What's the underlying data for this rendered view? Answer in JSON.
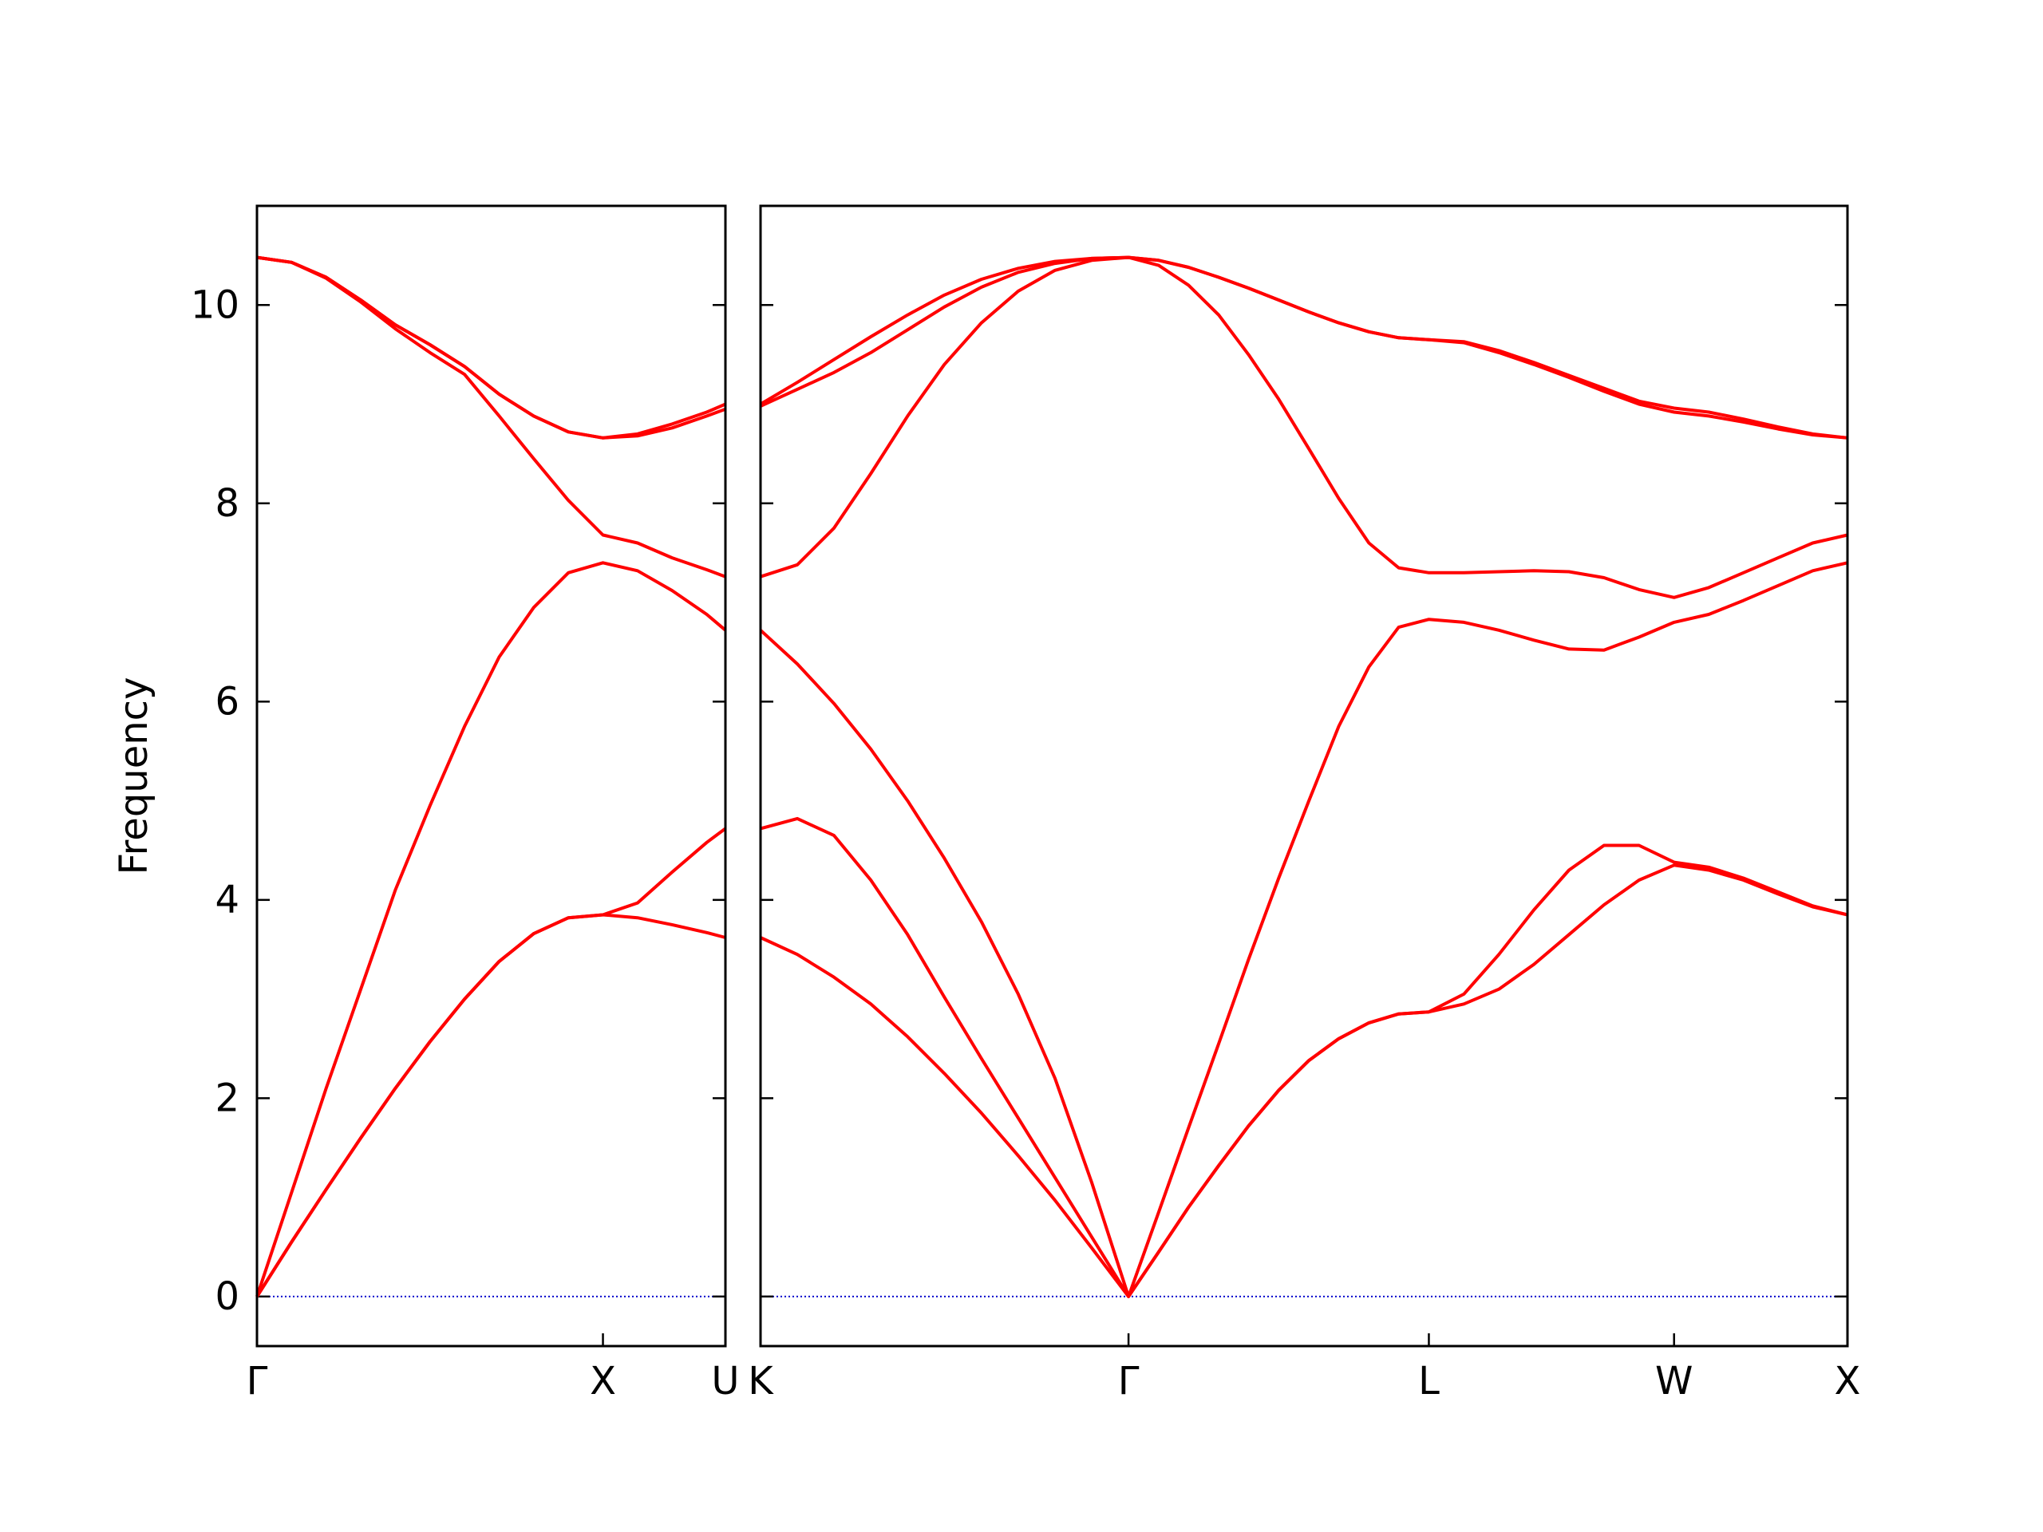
{
  "chart_data": [
    {
      "type": "line",
      "ylabel": "Frequency",
      "x": [
        0,
        0.1,
        0.2,
        0.3,
        0.4,
        0.5,
        0.6,
        0.7,
        0.8,
        0.9,
        1.0,
        1.1,
        1.2,
        1.3,
        1.354
      ],
      "xlim": [
        0,
        1.354
      ],
      "ylim": [
        -0.5,
        11
      ],
      "xticks": [
        {
          "value": 0,
          "label": "Γ"
        },
        {
          "value": 1.0,
          "label": "X"
        },
        {
          "value": 1.354,
          "label": "U"
        }
      ],
      "yticks": [
        0,
        2,
        4,
        6,
        8,
        10
      ],
      "ytick_labels": true,
      "hline": 0,
      "hline_color": "#0000cc",
      "series": [
        {
          "color": "#ff0000",
          "values": [
            0,
            0.55,
            1.08,
            1.6,
            2.1,
            2.57,
            3.0,
            3.38,
            3.66,
            3.82,
            3.85,
            3.82,
            3.75,
            3.67,
            3.62
          ]
        },
        {
          "color": "#ff0000",
          "values": [
            0,
            0.55,
            1.08,
            1.6,
            2.1,
            2.57,
            3.0,
            3.38,
            3.66,
            3.82,
            3.85,
            3.97,
            4.28,
            4.58,
            4.72
          ]
        },
        {
          "color": "#ff0000",
          "values": [
            0,
            1.05,
            2.1,
            3.1,
            4.1,
            4.95,
            5.75,
            6.45,
            6.95,
            7.3,
            7.4,
            7.32,
            7.12,
            6.88,
            6.72
          ]
        },
        {
          "color": "#ff0000",
          "values": [
            10.48,
            10.43,
            10.27,
            10.03,
            9.76,
            9.52,
            9.3,
            8.88,
            8.45,
            8.03,
            7.68,
            7.6,
            7.45,
            7.33,
            7.26
          ]
        },
        {
          "color": "#ff0000",
          "values": [
            10.48,
            10.43,
            10.28,
            10.05,
            9.8,
            9.6,
            9.38,
            9.1,
            8.88,
            8.72,
            8.66,
            8.68,
            8.76,
            8.88,
            8.95
          ]
        },
        {
          "color": "#ff0000",
          "values": [
            10.48,
            10.43,
            10.28,
            10.05,
            9.8,
            9.6,
            9.38,
            9.1,
            8.88,
            8.72,
            8.66,
            8.7,
            8.8,
            8.92,
            9.0
          ]
        }
      ]
    },
    {
      "type": "line",
      "x": [
        1.354,
        1.46,
        1.566,
        1.672,
        1.778,
        1.884,
        1.991,
        2.097,
        2.203,
        2.309,
        2.415,
        2.502,
        2.588,
        2.675,
        2.761,
        2.848,
        2.935,
        3.021,
        3.108,
        3.194,
        3.281,
        3.382,
        3.483,
        3.584,
        3.685,
        3.786,
        3.887,
        3.988,
        4.088,
        4.188,
        4.288,
        4.388,
        4.488
      ],
      "xlim": [
        1.354,
        4.488
      ],
      "ylim": [
        -0.5,
        11
      ],
      "xticks": [
        {
          "value": 1.354,
          "label": "K"
        },
        {
          "value": 2.415,
          "label": "Γ"
        },
        {
          "value": 3.281,
          "label": "L"
        },
        {
          "value": 3.988,
          "label": "W"
        },
        {
          "value": 4.488,
          "label": "X"
        }
      ],
      "yticks": [
        0,
        2,
        4,
        6,
        8,
        10
      ],
      "ytick_labels": false,
      "hline": 0,
      "hline_color": "#0000cc",
      "series": [
        {
          "color": "#ff0000",
          "values": [
            3.62,
            3.45,
            3.22,
            2.95,
            2.62,
            2.25,
            1.85,
            1.42,
            0.97,
            0.49,
            0,
            0.45,
            0.9,
            1.32,
            1.72,
            2.08,
            2.38,
            2.6,
            2.76,
            2.85,
            2.87,
            2.95,
            3.1,
            3.35,
            3.65,
            3.95,
            4.2,
            4.35,
            4.3,
            4.2,
            4.06,
            3.93,
            3.85
          ]
        },
        {
          "color": "#ff0000",
          "values": [
            4.72,
            4.82,
            4.65,
            4.2,
            3.65,
            3.02,
            2.4,
            1.8,
            1.2,
            0.6,
            0,
            0.45,
            0.9,
            1.32,
            1.72,
            2.08,
            2.38,
            2.6,
            2.76,
            2.85,
            2.87,
            3.05,
            3.45,
            3.9,
            4.3,
            4.55,
            4.55,
            4.38,
            4.33,
            4.22,
            4.08,
            3.94,
            3.85
          ]
        },
        {
          "color": "#ff0000",
          "values": [
            6.72,
            6.38,
            5.98,
            5.52,
            5.0,
            4.42,
            3.78,
            3.05,
            2.2,
            1.15,
            0,
            0.85,
            1.7,
            2.55,
            3.4,
            4.22,
            5.0,
            5.75,
            6.35,
            6.75,
            6.83,
            6.8,
            6.72,
            6.62,
            6.53,
            6.52,
            6.65,
            6.8,
            6.88,
            7.02,
            7.17,
            7.32,
            7.4
          ]
        },
        {
          "color": "#ff0000",
          "values": [
            7.26,
            7.38,
            7.75,
            8.3,
            8.88,
            9.4,
            9.82,
            10.14,
            10.35,
            10.45,
            10.48,
            10.4,
            10.2,
            9.9,
            9.5,
            9.05,
            8.55,
            8.05,
            7.6,
            7.35,
            7.3,
            7.3,
            7.31,
            7.32,
            7.31,
            7.25,
            7.13,
            7.05,
            7.15,
            7.3,
            7.45,
            7.6,
            7.68
          ]
        },
        {
          "color": "#ff0000",
          "values": [
            8.98,
            9.15,
            9.32,
            9.52,
            9.75,
            9.98,
            10.18,
            10.33,
            10.42,
            10.47,
            10.48,
            10.45,
            10.38,
            10.28,
            10.17,
            10.05,
            9.93,
            9.82,
            9.73,
            9.67,
            9.65,
            9.62,
            9.52,
            9.4,
            9.27,
            9.13,
            9.0,
            8.92,
            8.88,
            8.82,
            8.75,
            8.69,
            8.66
          ]
        },
        {
          "color": "#ff0000",
          "values": [
            9.0,
            9.22,
            9.45,
            9.68,
            9.9,
            10.1,
            10.26,
            10.37,
            10.44,
            10.47,
            10.48,
            10.45,
            10.38,
            10.28,
            10.17,
            10.05,
            9.93,
            9.82,
            9.73,
            9.67,
            9.65,
            9.63,
            9.54,
            9.42,
            9.29,
            9.16,
            9.03,
            8.96,
            8.92,
            8.85,
            8.77,
            8.7,
            8.66
          ]
        }
      ]
    }
  ]
}
